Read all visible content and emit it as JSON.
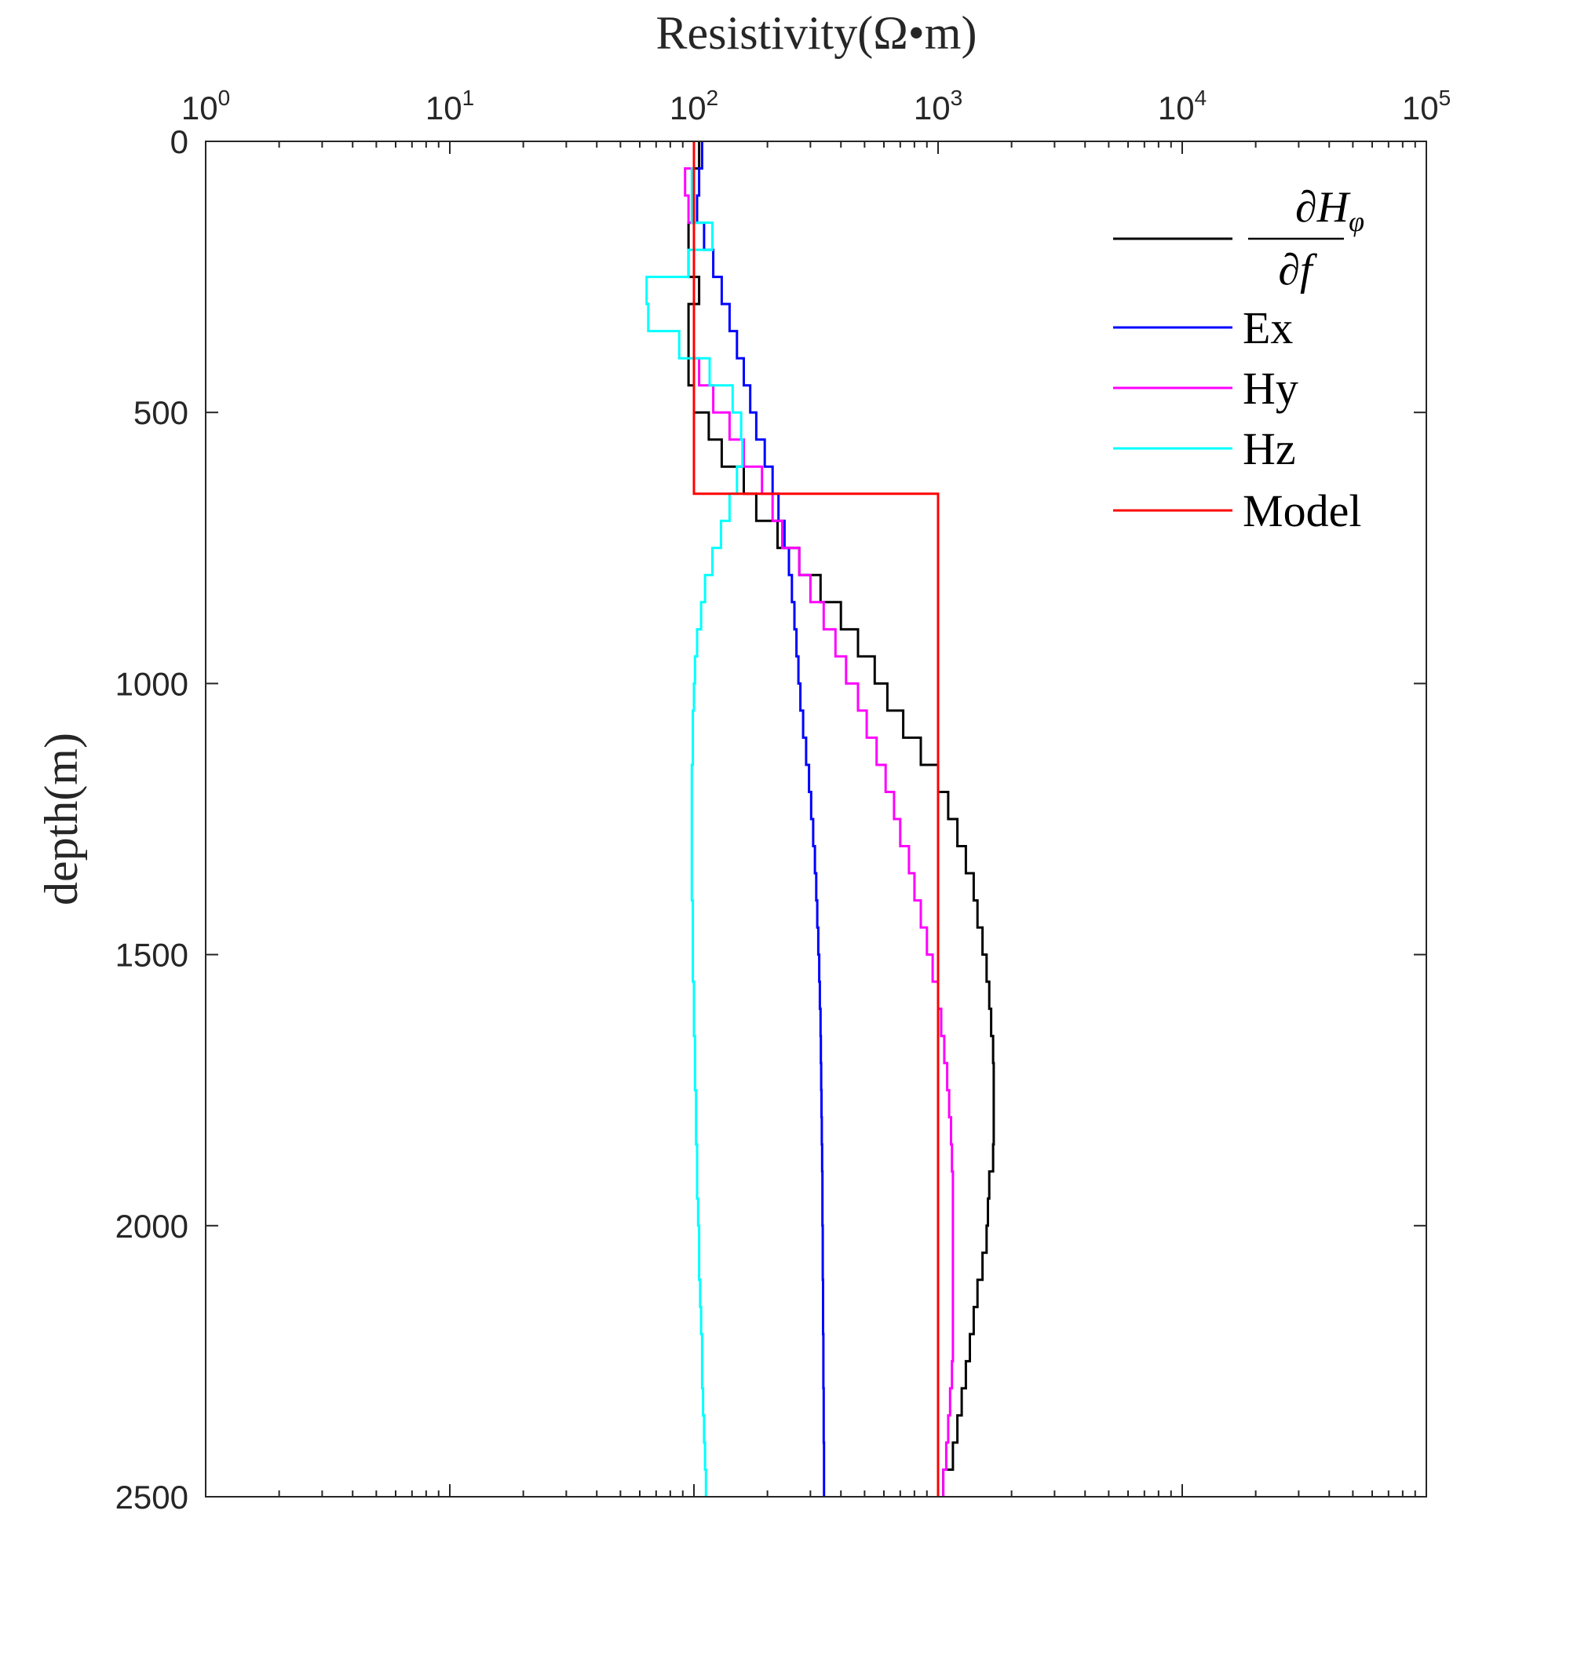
{
  "chart_data": {
    "type": "line",
    "title": "",
    "xlabel": "Resistivity(Ω•m)",
    "ylabel": "depth(m)",
    "xscale": "log",
    "xlim": [
      1,
      100000
    ],
    "ylim": [
      0,
      2500
    ],
    "y_reversed": true,
    "x_axis_location": "top",
    "x_tick_labels": [
      {
        "base": "10",
        "exp": "0"
      },
      {
        "base": "10",
        "exp": "1"
      },
      {
        "base": "10",
        "exp": "2"
      },
      {
        "base": "10",
        "exp": "3"
      },
      {
        "base": "10",
        "exp": "4"
      },
      {
        "base": "10",
        "exp": "5"
      }
    ],
    "y_ticks": [
      0,
      500,
      1000,
      1500,
      2000,
      2500
    ],
    "y_tick_labels": [
      "0",
      "500",
      "1000",
      "1500",
      "2000",
      "2500"
    ],
    "grid": false,
    "legend_placement": "top-right",
    "layer_thickness_m": 50,
    "series": [
      {
        "name": "dHphi/df",
        "legend": {
          "num": "∂H",
          "sub": "φ",
          "den": "∂f"
        },
        "color": "#000000",
        "style": "step",
        "values": [
          105,
          100,
          100,
          95,
          95,
          105,
          95,
          95,
          95,
          100,
          115,
          130,
          160,
          180,
          220,
          270,
          330,
          400,
          470,
          550,
          620,
          720,
          850,
          1000,
          1100,
          1200,
          1300,
          1400,
          1450,
          1520,
          1580,
          1620,
          1650,
          1680,
          1690,
          1690,
          1690,
          1680,
          1620,
          1600,
          1580,
          1520,
          1450,
          1400,
          1350,
          1300,
          1250,
          1200,
          1150,
          1050
        ]
      },
      {
        "name": "Ex",
        "color": "#0000ff",
        "style": "step",
        "values": [
          108,
          105,
          103,
          110,
          120,
          130,
          140,
          150,
          160,
          170,
          180,
          195,
          210,
          222,
          235,
          245,
          252,
          258,
          263,
          268,
          273,
          280,
          288,
          296,
          302,
          308,
          313,
          317,
          320,
          323,
          326,
          328,
          330,
          331,
          332,
          333,
          334,
          335,
          336,
          336,
          337,
          337,
          338,
          338,
          339,
          339,
          340,
          340,
          341,
          341
        ]
      },
      {
        "name": "Hy",
        "color": "#ff00ff",
        "style": "step",
        "values": [
          100,
          92,
          95,
          100,
          100,
          100,
          100,
          100,
          105,
          120,
          140,
          160,
          190,
          210,
          230,
          270,
          300,
          340,
          380,
          420,
          470,
          510,
          560,
          610,
          660,
          700,
          760,
          800,
          850,
          900,
          950,
          1000,
          1030,
          1060,
          1090,
          1110,
          1130,
          1140,
          1150,
          1150,
          1150,
          1150,
          1150,
          1150,
          1150,
          1140,
          1120,
          1100,
          1080,
          1050
        ]
      },
      {
        "name": "Hz",
        "color": "#00ffff",
        "style": "step",
        "values": [
          100,
          98,
          98,
          119,
          95,
          64,
          65,
          87,
          116,
          144,
          156,
          158,
          150,
          140,
          129,
          119,
          111,
          107,
          103,
          101,
          100,
          99,
          99,
          98,
          98,
          98,
          98,
          98,
          99,
          99,
          99,
          100,
          100,
          101,
          101,
          102,
          102,
          103,
          103,
          104,
          105,
          105,
          106,
          107,
          108,
          108,
          109,
          110,
          111,
          112
        ]
      },
      {
        "name": "Model",
        "color": "#ff0000",
        "style": "layers",
        "layers": [
          {
            "top": 0,
            "bottom": 650,
            "value": 100
          },
          {
            "top": 650,
            "bottom": 2500,
            "value": 1000
          }
        ]
      }
    ]
  }
}
